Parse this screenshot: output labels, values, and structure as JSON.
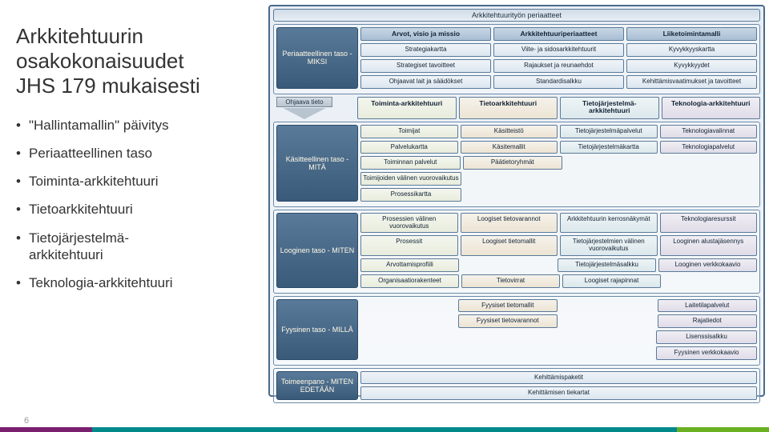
{
  "title_lines": [
    "Arkkitehtuurin",
    "osakokonaisuudet",
    "JHS 179 mukaisesti"
  ],
  "bullets": [
    "\"Hallintamallin\" päivitys",
    "Periaatteellinen taso",
    "Toiminta-arkkitehtuuri",
    "Tietoarkkitehtuuri",
    "Tietojärjestelmä-arkkitehtuuri",
    "Teknologia-arkkitehtuuri"
  ],
  "page_num": "6",
  "footer_colors": [
    "#7a1f6d",
    "#008a8a",
    "#6ab023"
  ],
  "footer_widths": [
    "12%",
    "76%",
    "12%"
  ],
  "diagram": {
    "top_band": "Arkkitehtuurityön periaatteet",
    "levels": [
      {
        "label": "Periaatteellinen taso - MIKSI"
      },
      {
        "label": "Käsitteellinen taso - MITÄ"
      },
      {
        "label": "Looginen taso - MITEN"
      },
      {
        "label": "Fyysinen taso - MILLÄ"
      }
    ],
    "ohjaava": "Ohjaava tieto",
    "p_rows": [
      [
        "Arvot, visio ja missio",
        "Arkkitehtuuriperiaatteet",
        "Liiketoimintamalli"
      ],
      [
        "Strategiakartta",
        "Viite- ja sidosarkkitehtuurit",
        "Kyvykkyyskartta"
      ],
      [
        "Strategiset tavoitteet",
        "Rajaukset ja reunaehdot",
        "Kyvykkyydet"
      ],
      [
        "Ohjaavat lait ja säädökset",
        "Standardisalkku",
        "Kehittämisvaatimukset ja tavoitteet"
      ]
    ],
    "col_headers": [
      "Toiminta-arkkitehtuuri",
      "Tietoarkkitehtuuri",
      "Tietojärjestelmä-arkkitehtuuri",
      "Teknologia-arkkitehtuuri"
    ],
    "k_rows": [
      [
        "Toimijat",
        "Käsitteistö",
        "Tietojärjestelmäpalvelut",
        "Teknologiavalinnat"
      ],
      [
        "Palvelukartta",
        "Käsitemallit",
        "Tietojärjestelmäkartta",
        "Teknologiapalvelut"
      ],
      [
        "Toiminnan palvelut",
        "Päätietoryhmät",
        "",
        ""
      ],
      [
        "Toimijoiden välinen vuorovaikutus",
        "",
        "",
        ""
      ],
      [
        "Prosessikartta",
        "",
        "",
        ""
      ]
    ],
    "l_rows": [
      [
        "Prosessien välinen vuorovaikutus",
        "Loogiset tietovarannot",
        "Arkkitehtuurin kerrosnäkymät",
        "Teknologiaresurssit"
      ],
      [
        "Prosessit",
        "Loogiset tietomallit",
        "Tietojärjestelmien välinen vuorovaikutus",
        "Looginen alustajäsennys"
      ],
      [
        "Arvottamisprofiili",
        "",
        "Tietojärjestelmäsalkku",
        "Looginen verkkokaavio"
      ],
      [
        "Organisaatiorakenteet",
        "Tietovirrat",
        "Loogiset rajapinnat",
        ""
      ]
    ],
    "f_rows": [
      [
        "",
        "Fyysiset tietomallit",
        "",
        "Laitetilapalvelut"
      ],
      [
        "",
        "Fyysiset tietovarannot",
        "",
        "Rajatiedot"
      ],
      [
        "",
        "",
        "",
        "Lisenssisalkku"
      ],
      [
        "",
        "",
        "",
        "Fyysinen verkkokaavio"
      ]
    ],
    "toimeenpano": "Toimeenpano - MITEN EDETÄÄN",
    "bottom": [
      "Kehittämispaketit",
      "Kehittämisen tiekartat"
    ]
  }
}
